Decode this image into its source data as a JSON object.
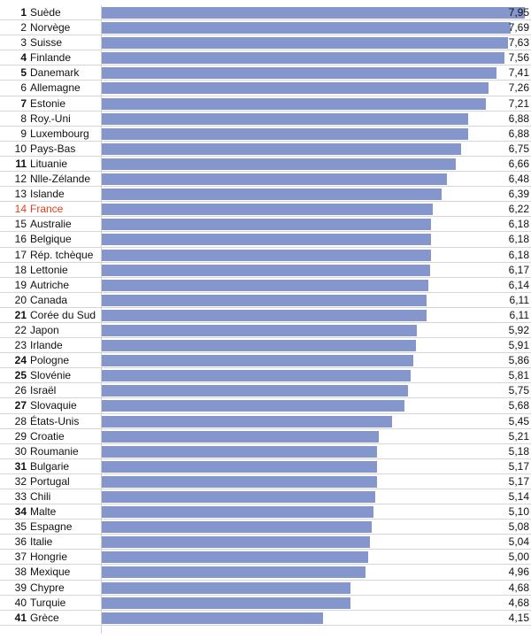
{
  "chart_data": {
    "type": "bar",
    "orientation": "horizontal",
    "xlim": [
      0,
      8
    ],
    "highlight_color": "#e2401c",
    "bar_color": "#8596cd",
    "rows": [
      {
        "rank": "1",
        "label": "Suède",
        "value": 7.95,
        "value_label": "7,95"
      },
      {
        "rank": "2",
        "label": "Norvège",
        "value": 7.69,
        "value_label": "7,69"
      },
      {
        "rank": "3",
        "label": "Suisse",
        "value": 7.63,
        "value_label": "7,63"
      },
      {
        "rank": "4",
        "label": "Finlande",
        "value": 7.56,
        "value_label": "7,56"
      },
      {
        "rank": "5",
        "label": "Danemark",
        "value": 7.41,
        "value_label": "7,41"
      },
      {
        "rank": "6",
        "label": "Allemagne",
        "value": 7.26,
        "value_label": "7,26"
      },
      {
        "rank": "7",
        "label": "Estonie",
        "value": 7.21,
        "value_label": "7,21"
      },
      {
        "rank": "8",
        "label": "Roy.-Uni",
        "value": 6.88,
        "value_label": "6,88"
      },
      {
        "rank": "9",
        "label": "Luxembourg",
        "value": 6.88,
        "value_label": "6,88"
      },
      {
        "rank": "10",
        "label": "Pays-Bas",
        "value": 6.75,
        "value_label": "6,75"
      },
      {
        "rank": "11",
        "label": "Lituanie",
        "value": 6.66,
        "value_label": "6,66"
      },
      {
        "rank": "12",
        "label": "Nlle-Zélande",
        "value": 6.48,
        "value_label": "6,48"
      },
      {
        "rank": "13",
        "label": "Islande",
        "value": 6.39,
        "value_label": "6,39"
      },
      {
        "rank": "14",
        "label": "France",
        "value": 6.22,
        "value_label": "6,22",
        "highlight": true
      },
      {
        "rank": "15",
        "label": "Australie",
        "value": 6.18,
        "value_label": "6,18"
      },
      {
        "rank": "16",
        "label": "Belgique",
        "value": 6.18,
        "value_label": "6,18"
      },
      {
        "rank": "17",
        "label": "Rép. tchèque",
        "value": 6.18,
        "value_label": "6,18"
      },
      {
        "rank": "18",
        "label": "Lettonie",
        "value": 6.17,
        "value_label": "6,17"
      },
      {
        "rank": "19",
        "label": "Autriche",
        "value": 6.14,
        "value_label": "6,14"
      },
      {
        "rank": "20",
        "label": "Canada",
        "value": 6.11,
        "value_label": "6,11"
      },
      {
        "rank": "21",
        "label": "Corée du Sud",
        "value": 6.11,
        "value_label": "6,11"
      },
      {
        "rank": "22",
        "label": "Japon",
        "value": 5.92,
        "value_label": "5,92"
      },
      {
        "rank": "23",
        "label": "Irlande",
        "value": 5.91,
        "value_label": "5,91"
      },
      {
        "rank": "24",
        "label": "Pologne",
        "value": 5.86,
        "value_label": "5,86"
      },
      {
        "rank": "25",
        "label": "Slovénie",
        "value": 5.81,
        "value_label": "5,81"
      },
      {
        "rank": "26",
        "label": "Israël",
        "value": 5.75,
        "value_label": "5,75"
      },
      {
        "rank": "27",
        "label": "Slovaquie",
        "value": 5.68,
        "value_label": "5,68"
      },
      {
        "rank": "28",
        "label": "États-Unis",
        "value": 5.45,
        "value_label": "5,45"
      },
      {
        "rank": "29",
        "label": "Croatie",
        "value": 5.21,
        "value_label": "5,21"
      },
      {
        "rank": "30",
        "label": "Roumanie",
        "value": 5.18,
        "value_label": "5,18"
      },
      {
        "rank": "31",
        "label": "Bulgarie",
        "value": 5.17,
        "value_label": "5,17"
      },
      {
        "rank": "32",
        "label": "Portugal",
        "value": 5.17,
        "value_label": "5,17"
      },
      {
        "rank": "33",
        "label": "Chili",
        "value": 5.14,
        "value_label": "5,14"
      },
      {
        "rank": "34",
        "label": "Malte",
        "value": 5.1,
        "value_label": "5,10"
      },
      {
        "rank": "35",
        "label": "Espagne",
        "value": 5.08,
        "value_label": "5,08"
      },
      {
        "rank": "36",
        "label": "Italie",
        "value": 5.04,
        "value_label": "5,04"
      },
      {
        "rank": "37",
        "label": "Hongrie",
        "value": 5.0,
        "value_label": "5,00"
      },
      {
        "rank": "38",
        "label": "Mexique",
        "value": 4.96,
        "value_label": "4,96"
      },
      {
        "rank": "39",
        "label": "Chypre",
        "value": 4.68,
        "value_label": "4,68"
      },
      {
        "rank": "40",
        "label": "Turquie",
        "value": 4.68,
        "value_label": "4,68"
      },
      {
        "rank": "41",
        "label": "Grèce",
        "value": 4.15,
        "value_label": "4,15"
      }
    ]
  }
}
